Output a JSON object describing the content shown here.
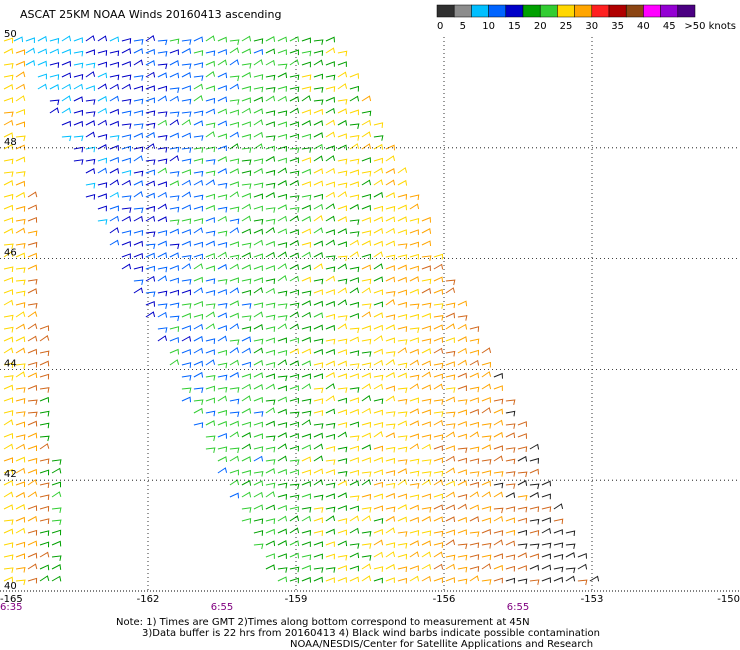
{
  "chart_data": {
    "type": "scatter",
    "title": "ASCAT 25KM NOAA Winds 20160413 ascending",
    "xlim": [
      -165,
      -150
    ],
    "ylim": [
      40,
      50
    ],
    "x_ticks": [
      "-165",
      "-162",
      "-159",
      "-156",
      "-153",
      "-150"
    ],
    "y_ticks": [
      "50",
      "48",
      "46",
      "44",
      "42",
      "40"
    ],
    "grid": true,
    "times": [
      {
        "label": "6:35",
        "x": -165
      },
      {
        "label": "6:55",
        "x": -160.5
      },
      {
        "label": "6:55",
        "x": -154.5
      }
    ],
    "legend": {
      "placement": "top-right",
      "unit_label": ">50 knots",
      "tick_labels": [
        "0",
        "5",
        "10",
        "15",
        "20",
        "25",
        "30",
        "35",
        "40",
        "45"
      ],
      "colors": [
        "#303030",
        "#8c8c8c",
        "#00bfff",
        "#0064ff",
        "#0000c8",
        "#00a000",
        "#32cd32",
        "#ffd700",
        "#ffa500",
        "#ff2020",
        "#b00000",
        "#8b4513",
        "#ff00ff",
        "#9400d3",
        "#4b0082"
      ]
    },
    "swaths": [
      {
        "name": "west swath",
        "polygon": [
          [
            -165,
            50
          ],
          [
            -164.7,
            50
          ],
          [
            -163.7,
            40
          ],
          [
            -165,
            40
          ]
        ],
        "colors": [
          "#ffd700",
          "#ffa500",
          "#d2691e",
          "#00a000",
          "#32cd32"
        ]
      },
      {
        "name": "main swath",
        "polygon": [
          [
            -164.8,
            50
          ],
          [
            -158.2,
            50
          ],
          [
            -152.9,
            40
          ],
          [
            -159.5,
            40
          ]
        ],
        "colors": [
          "#00bfff",
          "#0000c8",
          "#0064ff",
          "#32cd32",
          "#00a000",
          "#ffd700",
          "#ffa500",
          "#d2691e",
          "#202020"
        ]
      }
    ]
  },
  "notes": {
    "line1": "Note: 1) Times are GMT 2)Times along bottom correspond to measurement at 45N",
    "line2": "3)Data buffer is 22 hrs from 20160413 4) Black wind barbs indicate possible contamination",
    "line3": "NOAA/NESDIS/Center for Satellite Applications and Research"
  }
}
